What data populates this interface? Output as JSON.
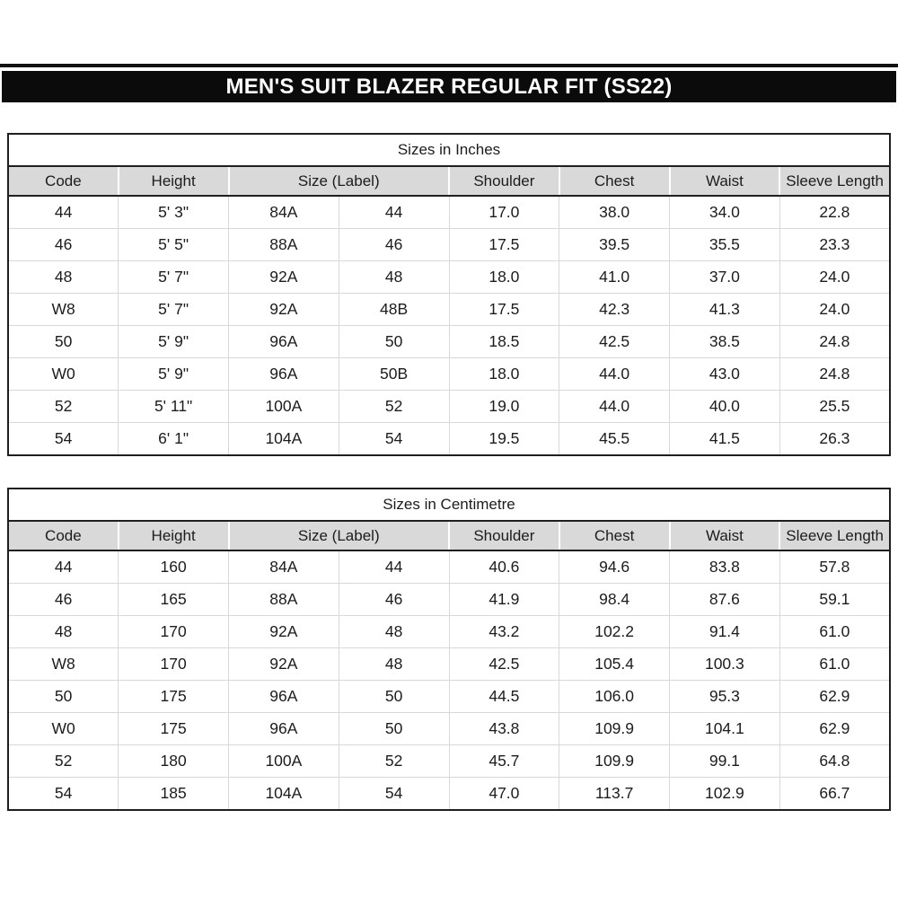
{
  "page": {
    "title": "MEN'S SUIT BLAZER REGULAR FIT (SS22)"
  },
  "colors": {
    "title_bar_bg": "#0b0b0b",
    "title_bar_text": "#ffffff",
    "header_fill": "#d9d9d9",
    "dark_border": "#1f1f1f",
    "light_grid": "#d9d9d9",
    "body_text": "#1c1c1c"
  },
  "chart_data": [
    {
      "type": "table",
      "title": "Sizes in Inches",
      "columns": [
        "Code",
        "Height",
        "Size (Label)",
        "Shoulder",
        "Chest",
        "Waist",
        "Sleeve Length"
      ],
      "size_label_colspan": 2,
      "rows": [
        [
          "44",
          "5' 3\"",
          "84A",
          "44",
          "17.0",
          "38.0",
          "34.0",
          "22.8"
        ],
        [
          "46",
          "5' 5\"",
          "88A",
          "46",
          "17.5",
          "39.5",
          "35.5",
          "23.3"
        ],
        [
          "48",
          "5' 7\"",
          "92A",
          "48",
          "18.0",
          "41.0",
          "37.0",
          "24.0"
        ],
        [
          "W8",
          "5' 7\"",
          "92A",
          "48B",
          "17.5",
          "42.3",
          "41.3",
          "24.0"
        ],
        [
          "50",
          "5' 9\"",
          "96A",
          "50",
          "18.5",
          "42.5",
          "38.5",
          "24.8"
        ],
        [
          "W0",
          "5' 9\"",
          "96A",
          "50B",
          "18.0",
          "44.0",
          "43.0",
          "24.8"
        ],
        [
          "52",
          "5' 11\"",
          "100A",
          "52",
          "19.0",
          "44.0",
          "40.0",
          "25.5"
        ],
        [
          "54",
          "6' 1\"",
          "104A",
          "54",
          "19.5",
          "45.5",
          "41.5",
          "26.3"
        ]
      ]
    },
    {
      "type": "table",
      "title": "Sizes in Centimetre",
      "columns": [
        "Code",
        "Height",
        "Size (Label)",
        "Shoulder",
        "Chest",
        "Waist",
        "Sleeve Length"
      ],
      "size_label_colspan": 2,
      "rows": [
        [
          "44",
          "160",
          "84A",
          "44",
          "40.6",
          "94.6",
          "83.8",
          "57.8"
        ],
        [
          "46",
          "165",
          "88A",
          "46",
          "41.9",
          "98.4",
          "87.6",
          "59.1"
        ],
        [
          "48",
          "170",
          "92A",
          "48",
          "43.2",
          "102.2",
          "91.4",
          "61.0"
        ],
        [
          "W8",
          "170",
          "92A",
          "48",
          "42.5",
          "105.4",
          "100.3",
          "61.0"
        ],
        [
          "50",
          "175",
          "96A",
          "50",
          "44.5",
          "106.0",
          "95.3",
          "62.9"
        ],
        [
          "W0",
          "175",
          "96A",
          "50",
          "43.8",
          "109.9",
          "104.1",
          "62.9"
        ],
        [
          "52",
          "180",
          "100A",
          "52",
          "45.7",
          "109.9",
          "99.1",
          "64.8"
        ],
        [
          "54",
          "185",
          "104A",
          "54",
          "47.0",
          "113.7",
          "102.9",
          "66.7"
        ]
      ]
    }
  ]
}
